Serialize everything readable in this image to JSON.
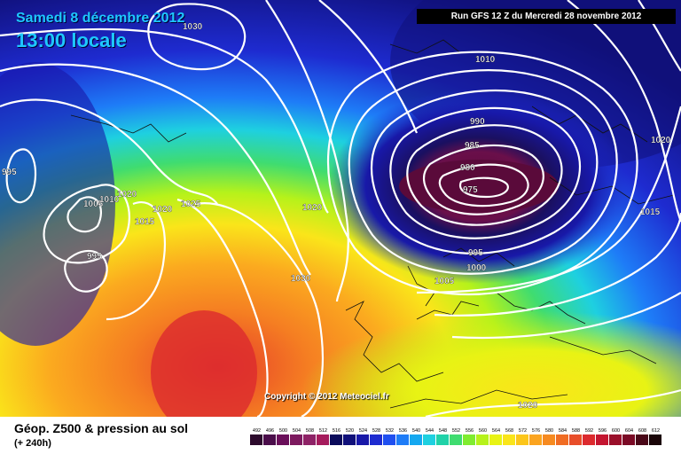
{
  "header": {
    "valid_date": "Samedi 8 décembre 2012",
    "valid_time": "13:00 locale",
    "run_info": "Run GFS 12 Z du Mercredi 28 novembre 2012"
  },
  "copyright": "Copyright © 2012 Meteociel.fr",
  "footer": {
    "title": "Géop. Z500 & pression au sol",
    "subtitle": "(+ 240h)"
  },
  "legend": {
    "values": [
      "492",
      "496",
      "500",
      "504",
      "508",
      "512",
      "516",
      "520",
      "524",
      "528",
      "532",
      "536",
      "540",
      "544",
      "548",
      "552",
      "556",
      "560",
      "564",
      "568",
      "572",
      "576",
      "580",
      "584",
      "588",
      "592",
      "596",
      "600",
      "604",
      "608",
      "612"
    ],
    "colors": [
      "#2c0a2c",
      "#4a0d4a",
      "#6a0f5a",
      "#7d1a5f",
      "#8e2266",
      "#a51b5c",
      "#0a0a5a",
      "#10107a",
      "#1818a8",
      "#1e2bd0",
      "#1f4ff0",
      "#1e7cf7",
      "#15a8f0",
      "#1ed0e0",
      "#20d2a8",
      "#3fdc70",
      "#80ec30",
      "#b6f21a",
      "#e8f314",
      "#fae51a",
      "#fcc61a",
      "#fba41f",
      "#f68a20",
      "#f06c23",
      "#e84e2a",
      "#dc2a2e",
      "#c41530",
      "#9a0f2a",
      "#7a0a25",
      "#4a0818",
      "#1a0508"
    ]
  },
  "isobars": [
    {
      "label": "1030"
    },
    {
      "label": "995"
    },
    {
      "label": "1005"
    },
    {
      "label": "1010"
    },
    {
      "label": "1015"
    },
    {
      "label": "1020"
    },
    {
      "label": "1025"
    },
    {
      "label": "1020"
    },
    {
      "label": "1030"
    },
    {
      "label": "1010"
    },
    {
      "label": "990"
    },
    {
      "label": "985"
    },
    {
      "label": "980"
    },
    {
      "label": "975"
    },
    {
      "label": "995"
    },
    {
      "label": "1000"
    },
    {
      "label": "1005"
    },
    {
      "label": "1020"
    },
    {
      "label": "1015"
    },
    {
      "label": "995"
    },
    {
      "label": "1020"
    },
    {
      "label": "1020"
    }
  ],
  "colors": {
    "valid_text": "#1ec8ff",
    "low_center": "#5a0a3a",
    "isobar": "#ffffff"
  }
}
